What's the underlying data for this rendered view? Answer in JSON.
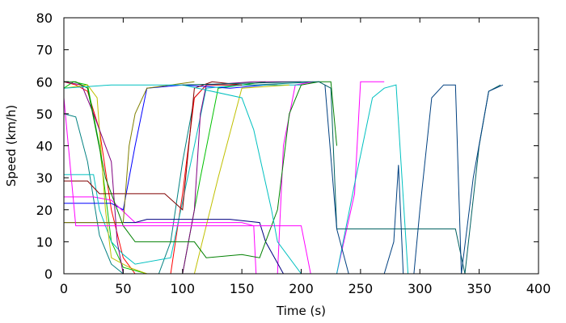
{
  "chart_data": {
    "type": "line",
    "title": "",
    "xlabel": "Time (s)",
    "ylabel": "Speed (km/h)",
    "xlim": [
      0,
      400
    ],
    "ylim": [
      0,
      80
    ],
    "x_ticks": [
      0,
      50,
      100,
      150,
      200,
      250,
      300,
      350,
      400
    ],
    "y_ticks": [
      0,
      10,
      20,
      30,
      40,
      50,
      60,
      70,
      80
    ],
    "grid": false,
    "legend": "none",
    "series": [
      {
        "color": "#008080",
        "points": [
          [
            0,
            50
          ],
          [
            10,
            49
          ],
          [
            20,
            35
          ],
          [
            30,
            12
          ],
          [
            40,
            3
          ],
          [
            50,
            0
          ],
          [
            80,
            0
          ],
          [
            90,
            10
          ],
          [
            100,
            35
          ],
          [
            110,
            55
          ],
          [
            120,
            59
          ],
          [
            160,
            59
          ],
          [
            215,
            60
          ]
        ]
      },
      {
        "color": "#ff0000",
        "points": [
          [
            0,
            60
          ],
          [
            10,
            59
          ],
          [
            20,
            57
          ],
          [
            30,
            45
          ],
          [
            40,
            20
          ],
          [
            50,
            5
          ],
          [
            60,
            0
          ],
          [
            90,
            0
          ],
          [
            100,
            25
          ],
          [
            110,
            55
          ],
          [
            120,
            59
          ],
          [
            180,
            59
          ]
        ]
      },
      {
        "color": "#00c000",
        "points": [
          [
            0,
            58
          ],
          [
            8,
            60
          ],
          [
            20,
            59
          ],
          [
            30,
            40
          ],
          [
            40,
            10
          ],
          [
            50,
            2
          ],
          [
            70,
            0
          ],
          [
            100,
            0
          ],
          [
            115,
            30
          ],
          [
            130,
            58
          ],
          [
            170,
            60
          ]
        ]
      },
      {
        "color": "#0000ff",
        "points": [
          [
            0,
            22
          ],
          [
            40,
            22
          ],
          [
            50,
            20
          ],
          [
            60,
            40
          ],
          [
            70,
            58
          ],
          [
            100,
            59
          ],
          [
            140,
            58
          ],
          [
            170,
            59
          ]
        ]
      },
      {
        "color": "#ff00ff",
        "points": [
          [
            0,
            24
          ],
          [
            25,
            24
          ],
          [
            40,
            23
          ],
          [
            60,
            16
          ],
          [
            90,
            16
          ],
          [
            120,
            16
          ],
          [
            150,
            16
          ],
          [
            160,
            15
          ],
          [
            162,
            0
          ],
          [
            180,
            0
          ],
          [
            185,
            40
          ],
          [
            195,
            59
          ],
          [
            210,
            60
          ]
        ]
      },
      {
        "color": "#00c0c0",
        "points": [
          [
            0,
            31
          ],
          [
            25,
            31
          ],
          [
            30,
            20
          ],
          [
            40,
            10
          ],
          [
            50,
            6
          ],
          [
            60,
            3
          ],
          [
            90,
            5
          ],
          [
            110,
            40
          ],
          [
            120,
            58
          ],
          [
            150,
            59
          ],
          [
            200,
            59
          ]
        ]
      },
      {
        "color": "#c0c000",
        "points": [
          [
            0,
            58
          ],
          [
            20,
            59
          ],
          [
            28,
            55
          ],
          [
            35,
            20
          ],
          [
            40,
            5
          ],
          [
            55,
            2
          ],
          [
            70,
            0
          ],
          [
            110,
            0
          ],
          [
            130,
            30
          ],
          [
            150,
            58
          ],
          [
            190,
            59
          ]
        ]
      },
      {
        "color": "#800000",
        "points": [
          [
            0,
            29
          ],
          [
            20,
            29
          ],
          [
            30,
            25
          ],
          [
            60,
            25
          ],
          [
            85,
            25
          ],
          [
            100,
            20
          ],
          [
            110,
            58
          ],
          [
            125,
            60
          ],
          [
            150,
            59
          ]
        ]
      },
      {
        "color": "#000080",
        "points": [
          [
            0,
            16
          ],
          [
            60,
            16
          ],
          [
            70,
            17
          ],
          [
            100,
            17
          ],
          [
            140,
            17
          ],
          [
            165,
            16
          ],
          [
            170,
            10
          ],
          [
            185,
            0
          ],
          [
            195,
            0
          ],
          [
            205,
            0
          ]
        ]
      },
      {
        "color": "#808000",
        "points": [
          [
            0,
            16
          ],
          [
            50,
            16
          ],
          [
            55,
            40
          ],
          [
            60,
            50
          ],
          [
            70,
            58
          ],
          [
            90,
            59
          ],
          [
            110,
            60
          ]
        ]
      },
      {
        "color": "#800080",
        "points": [
          [
            0,
            60
          ],
          [
            15,
            59
          ],
          [
            25,
            50
          ],
          [
            40,
            35
          ],
          [
            45,
            10
          ],
          [
            50,
            0
          ],
          [
            100,
            0
          ],
          [
            110,
            20
          ],
          [
            115,
            50
          ],
          [
            120,
            59
          ],
          [
            160,
            60
          ],
          [
            200,
            60
          ]
        ]
      },
      {
        "color": "#008000",
        "points": [
          [
            0,
            60
          ],
          [
            10,
            60
          ],
          [
            20,
            58
          ],
          [
            35,
            30
          ],
          [
            50,
            15
          ],
          [
            60,
            10
          ],
          [
            90,
            10
          ],
          [
            110,
            10
          ],
          [
            120,
            5
          ],
          [
            150,
            6
          ],
          [
            165,
            5
          ],
          [
            180,
            20
          ],
          [
            190,
            50
          ],
          [
            200,
            59
          ],
          [
            215,
            60
          ],
          [
            225,
            60
          ],
          [
            230,
            40
          ]
        ]
      },
      {
        "color": "#ff00ff",
        "points": [
          [
            0,
            55
          ],
          [
            10,
            15
          ],
          [
            50,
            15
          ],
          [
            160,
            15
          ],
          [
            180,
            15
          ],
          [
            200,
            15
          ],
          [
            208,
            0
          ],
          [
            230,
            0
          ],
          [
            245,
            25
          ],
          [
            250,
            60
          ],
          [
            270,
            60
          ]
        ]
      },
      {
        "color": "#00c0c0",
        "points": [
          [
            0,
            58
          ],
          [
            40,
            59
          ],
          [
            60,
            59
          ],
          [
            100,
            59
          ],
          [
            150,
            55
          ],
          [
            160,
            45
          ],
          [
            175,
            20
          ],
          [
            180,
            10
          ],
          [
            200,
            0
          ],
          [
            230,
            0
          ],
          [
            245,
            28
          ],
          [
            260,
            55
          ],
          [
            270,
            58
          ],
          [
            280,
            59
          ],
          [
            290,
            0
          ],
          [
            320,
            0
          ]
        ]
      },
      {
        "color": "#006060",
        "points": [
          [
            100,
            59
          ],
          [
            200,
            60
          ],
          [
            215,
            60
          ],
          [
            225,
            58
          ],
          [
            230,
            14
          ],
          [
            240,
            14
          ],
          [
            280,
            14
          ],
          [
            300,
            14
          ],
          [
            330,
            14
          ],
          [
            338,
            0
          ],
          [
            350,
            40
          ],
          [
            358,
            57
          ],
          [
            368,
            59
          ]
        ]
      },
      {
        "color": "#004080",
        "points": [
          [
            220,
            59
          ],
          [
            230,
            14
          ],
          [
            240,
            0
          ],
          [
            260,
            0
          ],
          [
            270,
            0
          ],
          [
            278,
            10
          ],
          [
            282,
            34
          ],
          [
            286,
            0
          ],
          [
            295,
            0
          ],
          [
            300,
            20
          ],
          [
            310,
            55
          ],
          [
            320,
            59
          ],
          [
            330,
            59
          ],
          [
            335,
            0
          ],
          [
            345,
            30
          ],
          [
            358,
            57
          ],
          [
            370,
            59
          ]
        ]
      }
    ]
  }
}
